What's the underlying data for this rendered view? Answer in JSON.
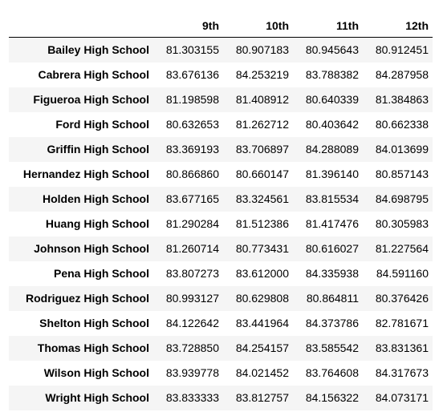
{
  "table": {
    "index_header": "",
    "columns": [
      "9th",
      "10th",
      "11th",
      "12th"
    ],
    "rows": [
      {
        "school": "Bailey High School",
        "values": [
          "81.303155",
          "80.907183",
          "80.945643",
          "80.912451"
        ]
      },
      {
        "school": "Cabrera High School",
        "values": [
          "83.676136",
          "84.253219",
          "83.788382",
          "84.287958"
        ]
      },
      {
        "school": "Figueroa High School",
        "values": [
          "81.198598",
          "81.408912",
          "80.640339",
          "81.384863"
        ]
      },
      {
        "school": "Ford High School",
        "values": [
          "80.632653",
          "81.262712",
          "80.403642",
          "80.662338"
        ]
      },
      {
        "school": "Griffin High School",
        "values": [
          "83.369193",
          "83.706897",
          "84.288089",
          "84.013699"
        ]
      },
      {
        "school": "Hernandez High School",
        "values": [
          "80.866860",
          "80.660147",
          "81.396140",
          "80.857143"
        ]
      },
      {
        "school": "Holden High School",
        "values": [
          "83.677165",
          "83.324561",
          "83.815534",
          "84.698795"
        ]
      },
      {
        "school": "Huang High School",
        "values": [
          "81.290284",
          "81.512386",
          "81.417476",
          "80.305983"
        ]
      },
      {
        "school": "Johnson High School",
        "values": [
          "81.260714",
          "80.773431",
          "80.616027",
          "81.227564"
        ]
      },
      {
        "school": "Pena High School",
        "values": [
          "83.807273",
          "83.612000",
          "84.335938",
          "84.591160"
        ]
      },
      {
        "school": "Rodriguez High School",
        "values": [
          "80.993127",
          "80.629808",
          "80.864811",
          "80.376426"
        ]
      },
      {
        "school": "Shelton High School",
        "values": [
          "84.122642",
          "83.441964",
          "84.373786",
          "82.781671"
        ]
      },
      {
        "school": "Thomas High School",
        "values": [
          "83.728850",
          "84.254157",
          "83.585542",
          "83.831361"
        ]
      },
      {
        "school": "Wilson High School",
        "values": [
          "83.939778",
          "84.021452",
          "83.764608",
          "84.317673"
        ]
      },
      {
        "school": "Wright High School",
        "values": [
          "83.833333",
          "83.812757",
          "84.156322",
          "84.073171"
        ]
      }
    ]
  }
}
